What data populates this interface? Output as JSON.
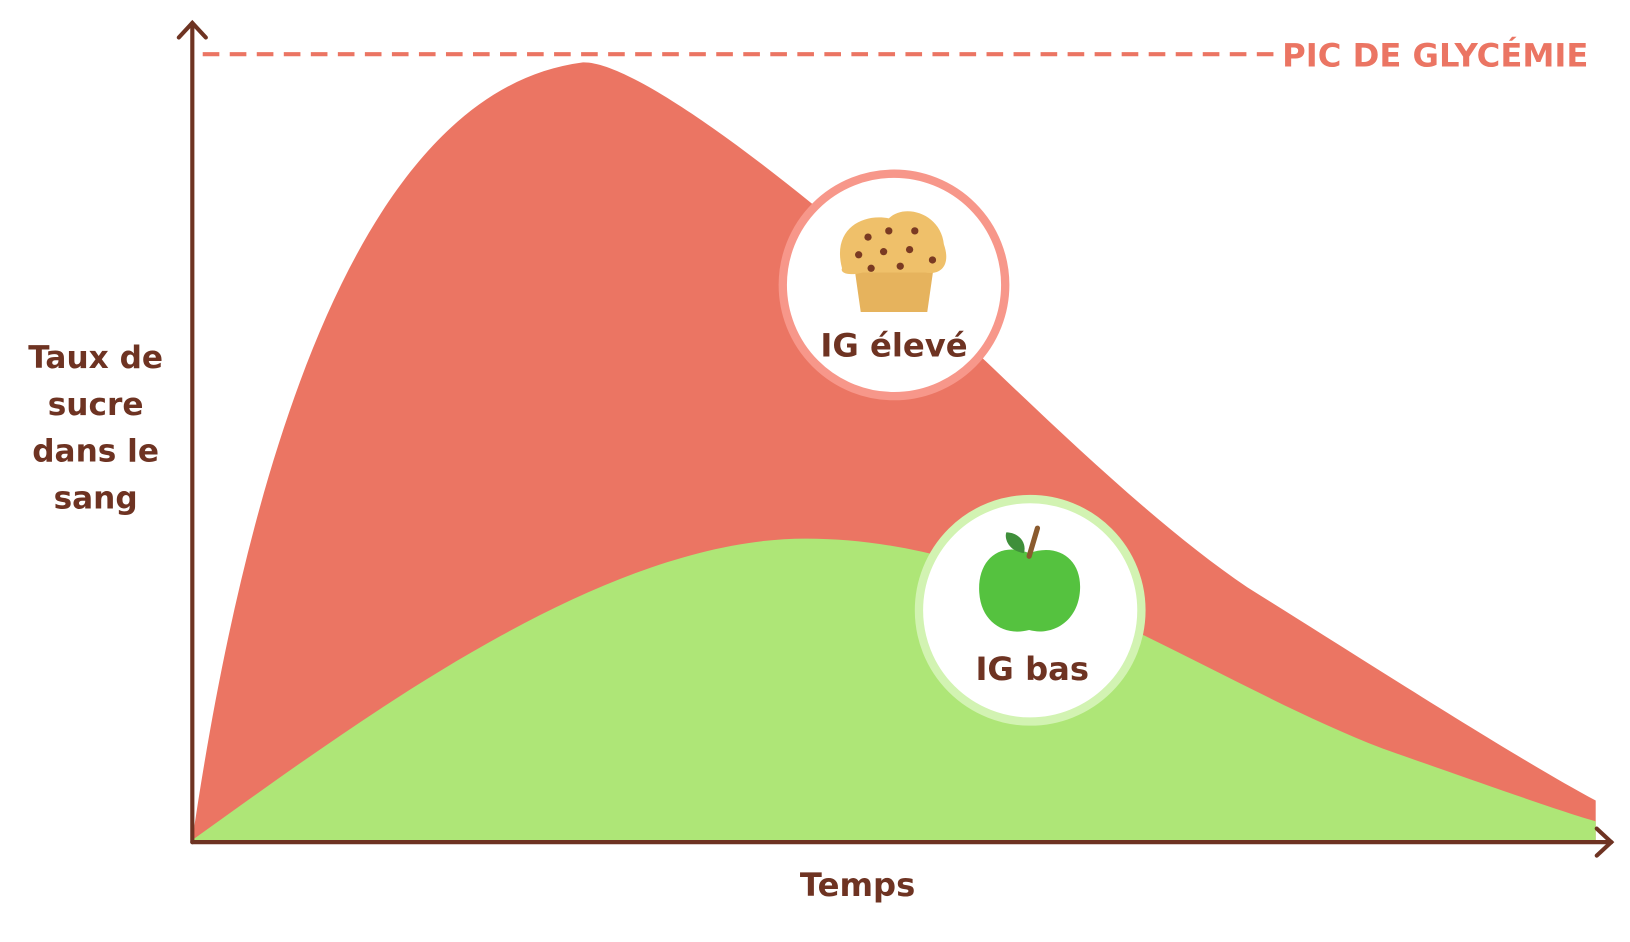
{
  "y_axis_label": [
    "Taux de",
    "sucre",
    "dans le",
    "sang"
  ],
  "x_axis_label": "Temps",
  "peak_label": "PIC DE GLYCÉMIE",
  "badges": [
    {
      "label": "IG élevé"
    },
    {
      "label": "IG bas"
    }
  ]
}
